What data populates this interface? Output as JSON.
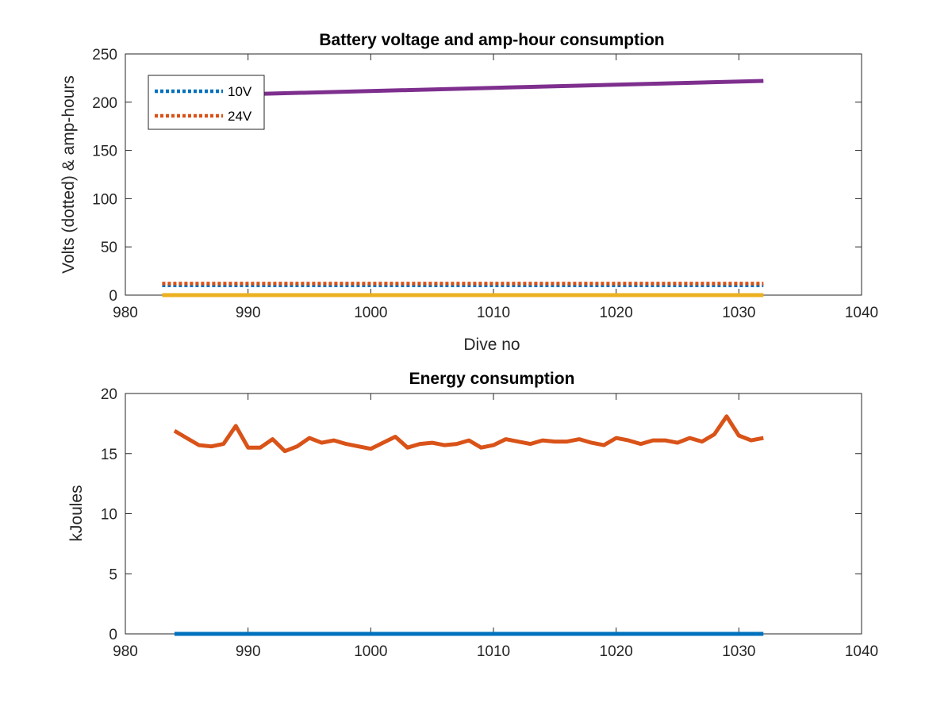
{
  "chart_data": [
    {
      "type": "line",
      "title": "Battery voltage and amp-hour consumption",
      "xlabel": "Dive no",
      "ylabel": "Volts (dotted) & amp-hours",
      "xlim": [
        980,
        1040
      ],
      "ylim": [
        0,
        250
      ],
      "xticks": [
        980,
        990,
        1000,
        1010,
        1020,
        1030,
        1040
      ],
      "yticks": [
        0,
        50,
        100,
        150,
        200,
        250
      ],
      "grid": false,
      "legend": {
        "placement": "top-left",
        "entries": [
          "10V",
          "24V"
        ]
      },
      "series": [
        {
          "name": "10V",
          "color": "#0072BD",
          "style": "dotted",
          "x": [
            983,
            1032
          ],
          "y": [
            10,
            10
          ]
        },
        {
          "name": "24V",
          "color": "#D95319",
          "style": "dotted",
          "x": [
            983,
            1032
          ],
          "y": [
            12,
            12
          ]
        },
        {
          "color": "#EDB120",
          "style": "solid",
          "x": [
            983,
            1032
          ],
          "y": [
            0,
            0
          ]
        },
        {
          "color": "#7E2F8E",
          "style": "solid",
          "x": [
            983,
            1032
          ],
          "y": [
            206,
            222
          ]
        }
      ]
    },
    {
      "type": "line",
      "title": "Energy consumption",
      "xlabel": "",
      "ylabel": "kJoules",
      "xlim": [
        980,
        1040
      ],
      "ylim": [
        0,
        20
      ],
      "xticks": [
        980,
        990,
        1000,
        1010,
        1020,
        1030,
        1040
      ],
      "yticks": [
        0,
        5,
        10,
        15,
        20
      ],
      "grid": false,
      "series": [
        {
          "color": "#0072BD",
          "style": "solid",
          "x": [
            984,
            1032
          ],
          "y": [
            0,
            0
          ]
        },
        {
          "color": "#D95319",
          "style": "solid",
          "x": [
            984,
            985,
            986,
            987,
            988,
            989,
            990,
            991,
            992,
            993,
            994,
            995,
            996,
            997,
            998,
            999,
            1000,
            1001,
            1002,
            1003,
            1004,
            1005,
            1006,
            1007,
            1008,
            1009,
            1010,
            1011,
            1012,
            1013,
            1014,
            1015,
            1016,
            1017,
            1018,
            1019,
            1020,
            1021,
            1022,
            1023,
            1024,
            1025,
            1026,
            1027,
            1028,
            1029,
            1030,
            1031,
            1032
          ],
          "y": [
            16.9,
            16.3,
            15.7,
            15.6,
            15.8,
            17.3,
            15.5,
            15.5,
            16.2,
            15.2,
            15.6,
            16.3,
            15.9,
            16.1,
            15.8,
            15.6,
            15.4,
            15.9,
            16.4,
            15.5,
            15.8,
            15.9,
            15.7,
            15.8,
            16.1,
            15.5,
            15.7,
            16.2,
            16.0,
            15.8,
            16.1,
            16.0,
            16.0,
            16.2,
            15.9,
            15.7,
            16.3,
            16.1,
            15.8,
            16.1,
            16.1,
            15.9,
            16.3,
            16.0,
            16.6,
            18.1,
            16.5,
            16.1,
            16.3
          ]
        }
      ]
    }
  ]
}
